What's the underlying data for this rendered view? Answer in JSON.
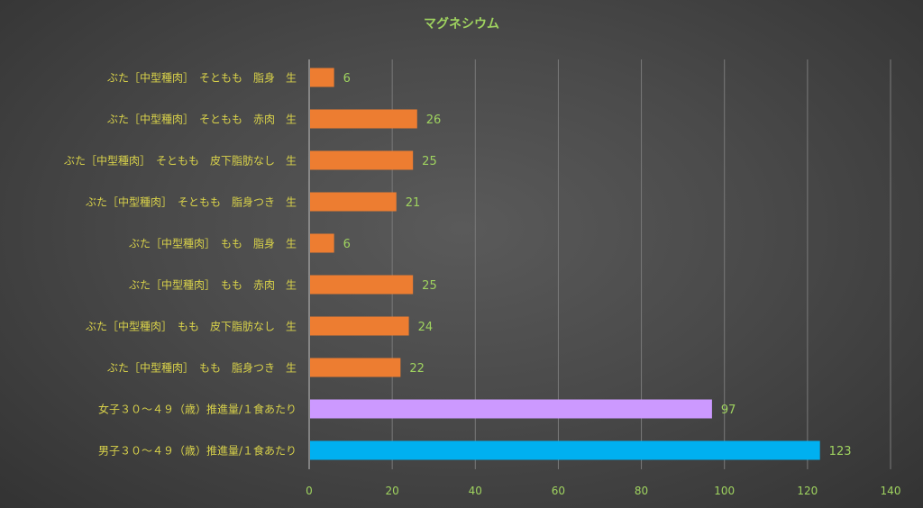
{
  "chart_data": {
    "type": "bar",
    "orientation": "horizontal",
    "title": "マグネシウム",
    "xlabel": "",
    "ylabel": "",
    "xlim": [
      0,
      140
    ],
    "x_ticks": [
      0,
      20,
      40,
      60,
      80,
      100,
      120,
      140
    ],
    "grid": "vertical",
    "legend": "none",
    "colors": {
      "title": "#9fd35f",
      "category_label": "#d9d24a",
      "tick_label": "#9fd35f",
      "value_label": "#9fd35f",
      "grid": "#7a7a7a",
      "axis": "#bfbfbf"
    },
    "categories": [
      {
        "label": "ぶた［中型種肉］　そともも　脂身　生",
        "value": 6,
        "color": "#ed7d31"
      },
      {
        "label": "ぶた［中型種肉］　そともも　赤肉　生",
        "value": 26,
        "color": "#ed7d31"
      },
      {
        "label": "ぶた［中型種肉］　そともも　皮下脂肪なし　生",
        "value": 25,
        "color": "#ed7d31"
      },
      {
        "label": "ぶた［中型種肉］　そともも　脂身つき　生",
        "value": 21,
        "color": "#ed7d31"
      },
      {
        "label": "ぶた［中型種肉］　もも　脂身　生",
        "value": 6,
        "color": "#ed7d31"
      },
      {
        "label": "ぶた［中型種肉］　もも　赤肉　生",
        "value": 25,
        "color": "#ed7d31"
      },
      {
        "label": "ぶた［中型種肉］　もも　皮下脂肪なし　生",
        "value": 24,
        "color": "#ed7d31"
      },
      {
        "label": "ぶた［中型種肉］　もも　脂身つき　生",
        "value": 22,
        "color": "#ed7d31"
      },
      {
        "label": "女子３０～４９（歳）推進量/１食あたり",
        "value": 97,
        "color": "#cc99ff"
      },
      {
        "label": "男子３０～４９（歳）推進量/１食あたり",
        "value": 123,
        "color": "#00b0f0"
      }
    ]
  }
}
